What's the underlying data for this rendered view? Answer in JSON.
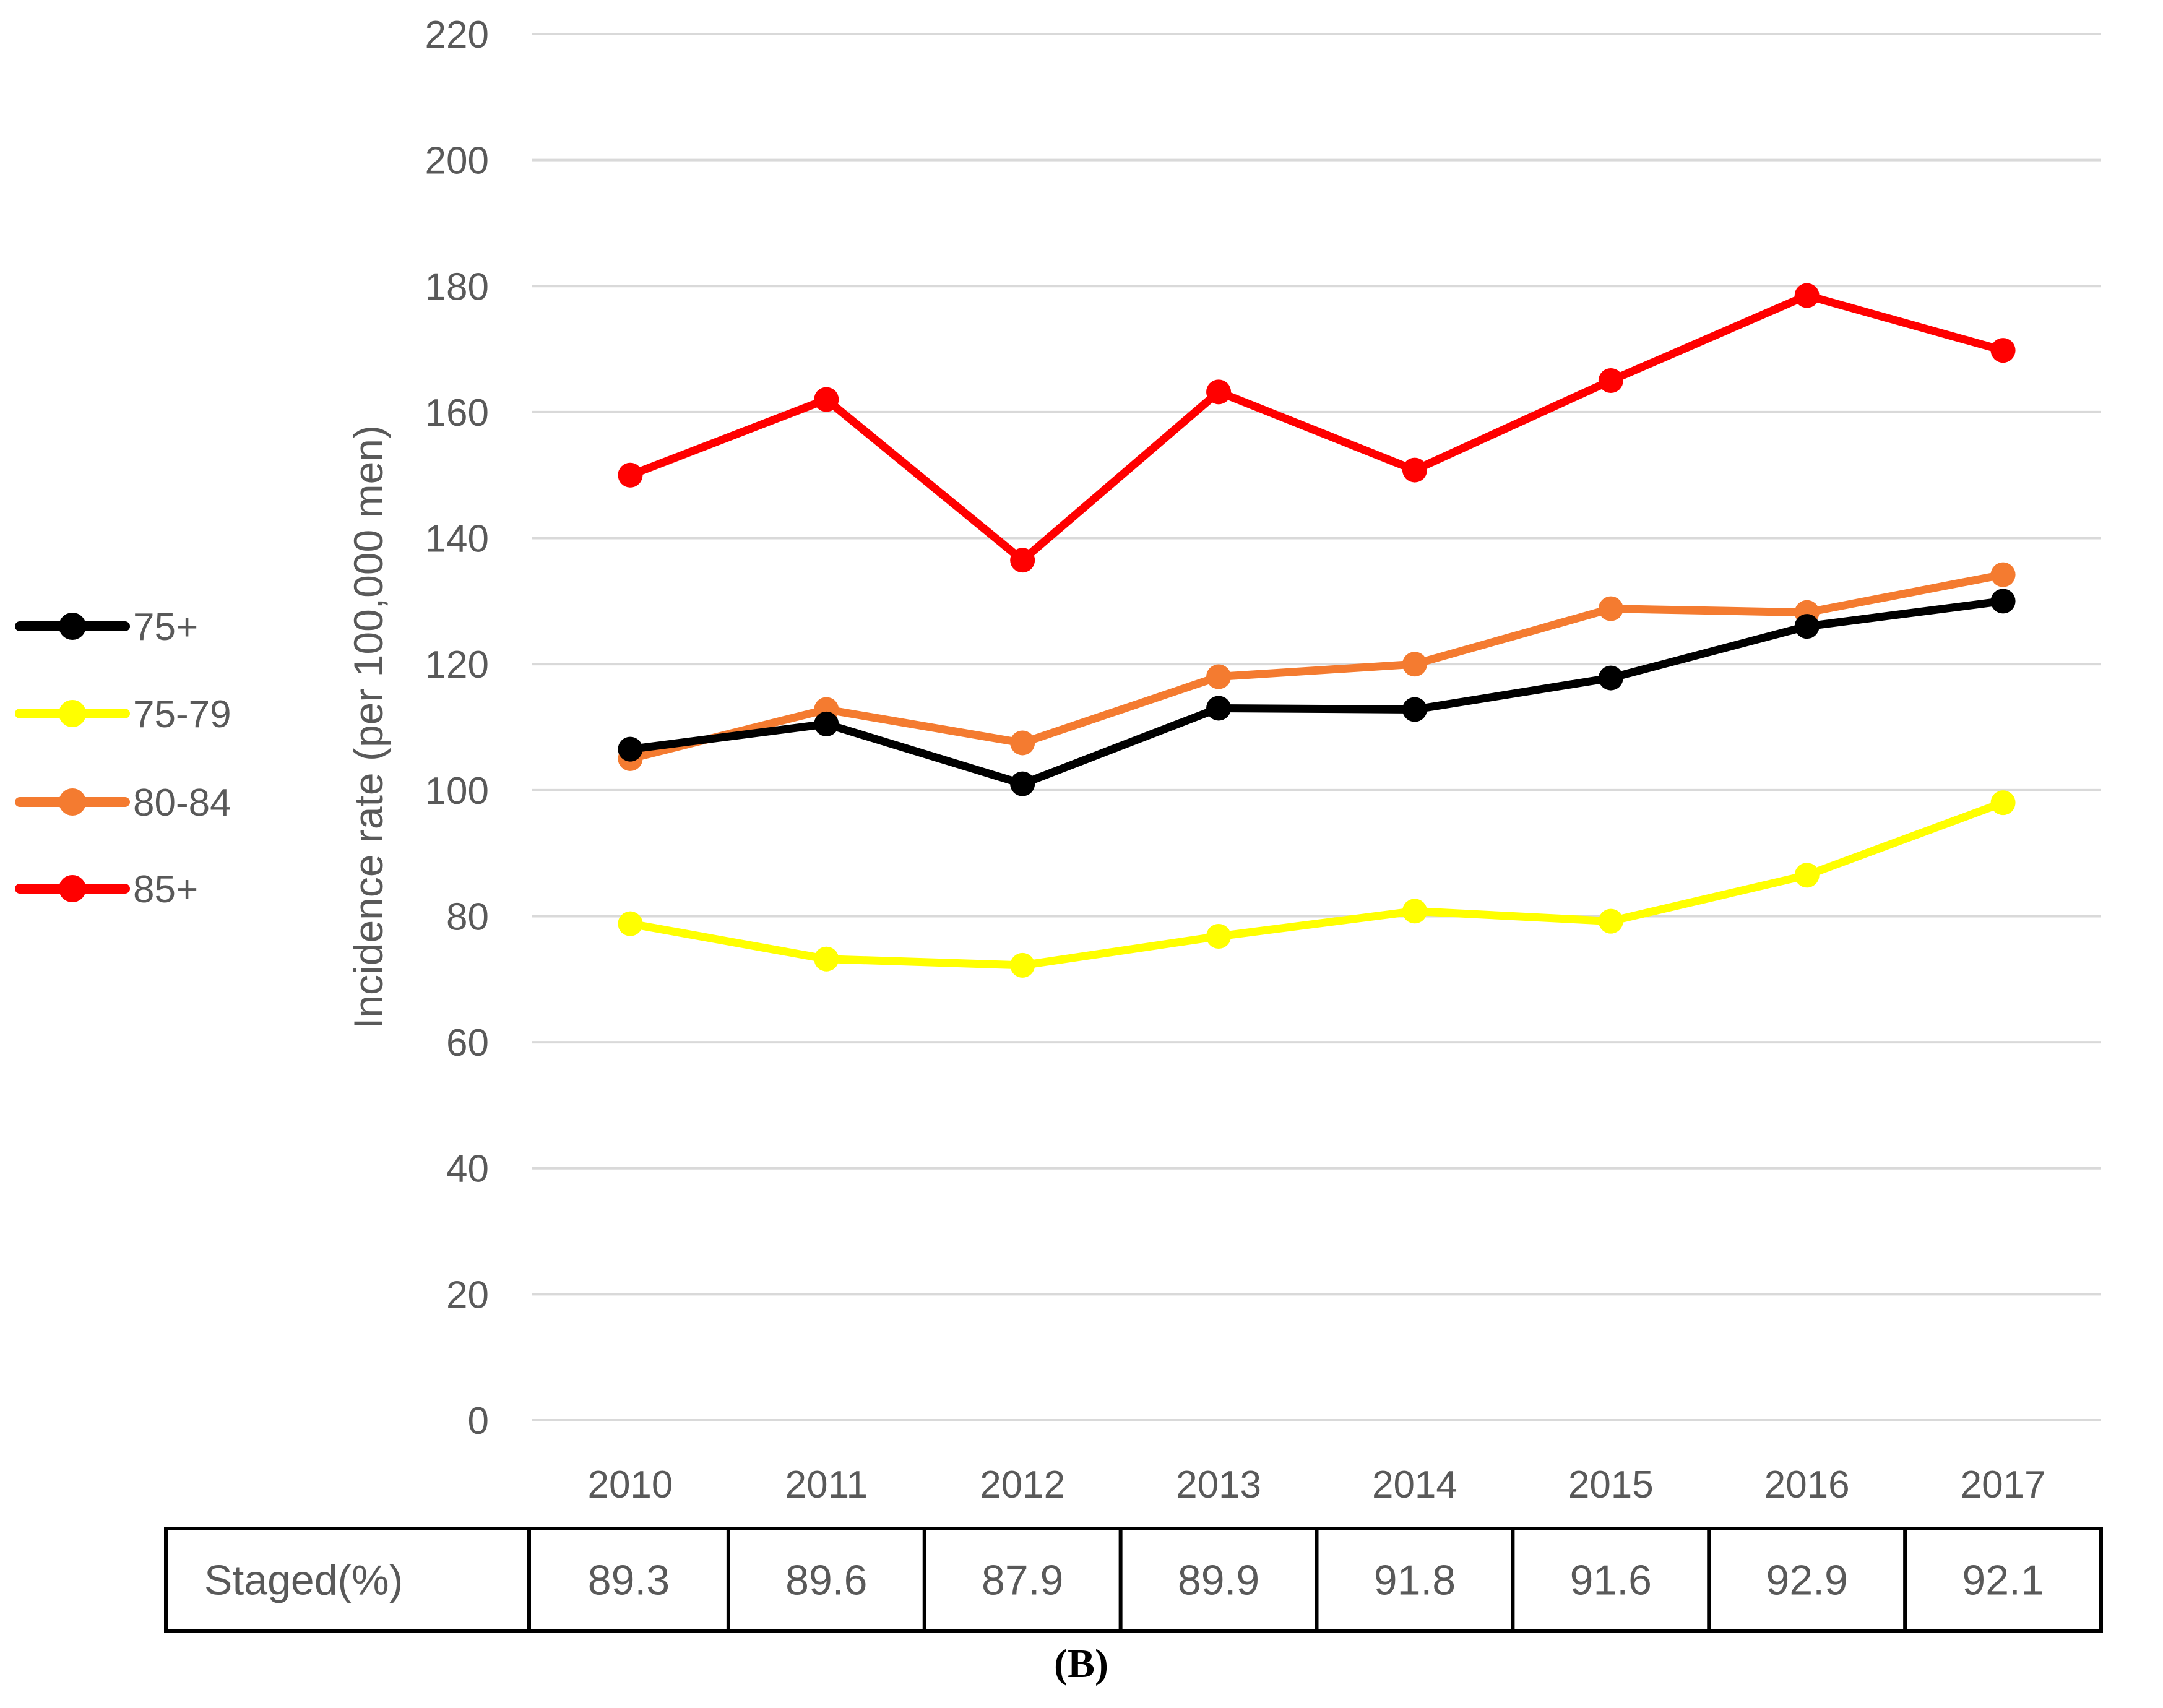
{
  "chart_data": {
    "type": "line",
    "title": "",
    "xlabel": "",
    "ylabel": "Incidence rate (per 100,000 men)",
    "ylim": [
      0,
      220
    ],
    "yticks": [
      0,
      20,
      40,
      60,
      80,
      100,
      120,
      140,
      160,
      180,
      200,
      220
    ],
    "grid": true,
    "legend_position": "left",
    "categories": [
      "2010",
      "2011",
      "2012",
      "2013",
      "2014",
      "2015",
      "2016",
      "2017"
    ],
    "series": [
      {
        "name": "75+",
        "color": "#000000",
        "values": [
          106.5,
          110.5,
          101,
          113,
          112.8,
          117.8,
          126,
          130
        ]
      },
      {
        "name": "75-79",
        "color": "#FFFF00",
        "values": [
          78.8,
          73.2,
          72.2,
          76.8,
          80.8,
          79.2,
          86.5,
          98
        ]
      },
      {
        "name": "80-84",
        "color": "#F47B30",
        "values": [
          105,
          112.8,
          107.5,
          118,
          120,
          128.8,
          128.2,
          134.2
        ]
      },
      {
        "name": "85+",
        "color": "#FF0000",
        "values": [
          150,
          162,
          136.5,
          163.2,
          150.8,
          165,
          178.5,
          169.8
        ]
      }
    ],
    "table": {
      "row_label": "Staged(%)",
      "values": [
        "89.3",
        "89.6",
        "87.9",
        "89.9",
        "91.8",
        "91.6",
        "92.9",
        "92.1"
      ]
    },
    "caption": "(B)"
  }
}
